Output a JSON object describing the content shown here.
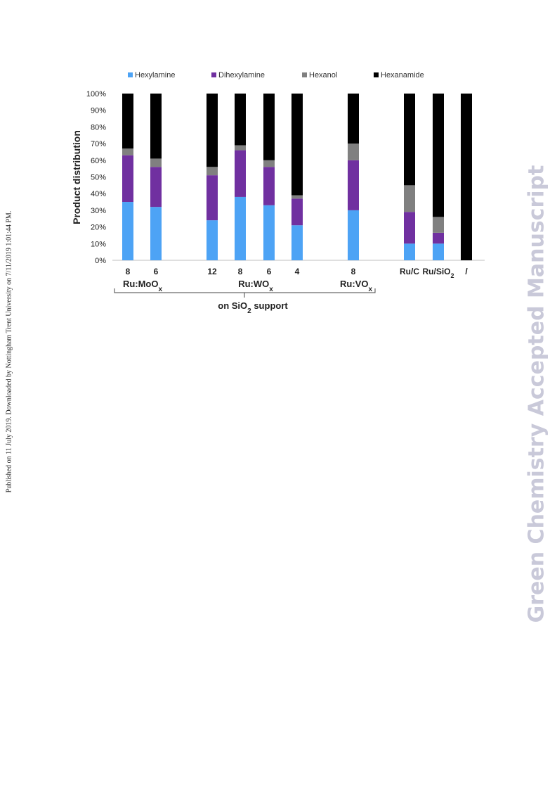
{
  "side_note": "Published on 11 July 2019. Downloaded by Nottingham Trent University on 7/11/2019 1:01:44 PM.",
  "watermark": "Green Chemistry Accepted Manuscript",
  "chart_data": {
    "type": "bar",
    "stacked": true,
    "ylabel": "Product distribution",
    "ylim": [
      0,
      100
    ],
    "yticks": [
      "0%",
      "10%",
      "20%",
      "30%",
      "40%",
      "50%",
      "60%",
      "70%",
      "80%",
      "90%",
      "100%"
    ],
    "legend_position": "top",
    "categories": [
      "8",
      "6",
      "12",
      "8",
      "6",
      "4",
      "8",
      "Ru/C",
      "Ru/SiO2",
      "/"
    ],
    "series": [
      {
        "name": "Hexylamine",
        "color": "#4da3f5",
        "values": [
          35,
          32,
          24,
          38,
          33,
          21,
          30,
          10,
          10,
          0
        ]
      },
      {
        "name": "Dihexylamine",
        "color": "#7030a0",
        "values": [
          28,
          24,
          27,
          28,
          23,
          16,
          30,
          19,
          6.5,
          0
        ]
      },
      {
        "name": "Hexanol",
        "color": "#808080",
        "values": [
          4,
          5,
          5,
          3,
          4,
          2,
          10,
          16,
          9.5,
          0
        ]
      },
      {
        "name": "Hexanamide",
        "color": "#000000",
        "values": [
          33,
          39,
          44,
          31,
          40,
          61,
          30,
          55,
          74,
          100
        ]
      }
    ],
    "group_labels": [
      {
        "text": "Ru:MoO",
        "sub": "x"
      },
      {
        "text": "Ru:WO",
        "sub": "x"
      },
      {
        "text": "Ru:VO",
        "sub": "x"
      }
    ],
    "brace_label": {
      "text": "on SiO",
      "sub": "2",
      "rest": " support"
    }
  }
}
